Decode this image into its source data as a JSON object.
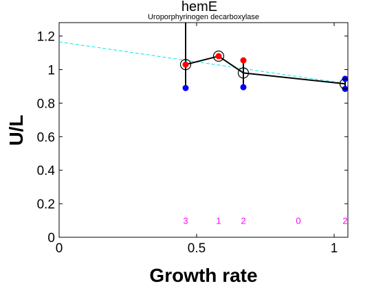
{
  "chart_data": {
    "type": "scatter",
    "title": "hemE",
    "subtitle": "Uroporphyrinogen decarboxylase",
    "xlabel": "Growth rate",
    "ylabel": "U/L",
    "xlim": [
      0,
      1.05
    ],
    "ylim": [
      0,
      1.28
    ],
    "xticks": [
      0,
      0.5,
      1
    ],
    "xtick_labels": [
      "0",
      "0.5",
      "1"
    ],
    "yticks": [
      0,
      0.2,
      0.4,
      0.6,
      0.8,
      1.0,
      1.2
    ],
    "ytick_labels": [
      "0",
      "0.2",
      "0.4",
      "0.6",
      "0.8",
      "1",
      "1.2"
    ],
    "grid": false,
    "colors": {
      "mean_line": "#000000",
      "fit_line": "#00e5ee",
      "red_points": "#ff0000",
      "blue_points": "#0000ff",
      "count_labels": "#ff00ff"
    },
    "mean_series": {
      "x": [
        0.46,
        0.58,
        0.67,
        1.04
      ],
      "y": [
        1.03,
        1.08,
        0.98,
        0.915
      ]
    },
    "error_bars": [
      {
        "x": 0.46,
        "low": 0.89,
        "high": 1.28
      },
      {
        "x": 0.58,
        "low": 1.065,
        "high": 1.09
      },
      {
        "x": 0.67,
        "low": 0.895,
        "high": 1.055
      },
      {
        "x": 1.04,
        "low": 0.885,
        "high": 0.945
      }
    ],
    "red_points": {
      "x": [
        0.46,
        0.58,
        0.67
      ],
      "y": [
        1.03,
        1.08,
        1.055
      ]
    },
    "blue_points": {
      "x": [
        0.46,
        0.67,
        1.04,
        1.04
      ],
      "y": [
        0.89,
        0.895,
        0.945,
        0.885
      ]
    },
    "fit_line": {
      "style": "dashed",
      "x": [
        0,
        1.05
      ],
      "y": [
        1.165,
        0.915
      ]
    },
    "count_labels": [
      {
        "x": 0.46,
        "text": "3"
      },
      {
        "x": 0.58,
        "text": "1"
      },
      {
        "x": 0.67,
        "text": "2"
      },
      {
        "x": 0.87,
        "text": "0"
      },
      {
        "x": 1.04,
        "text": "2"
      }
    ],
    "count_label_y": 0.1
  }
}
